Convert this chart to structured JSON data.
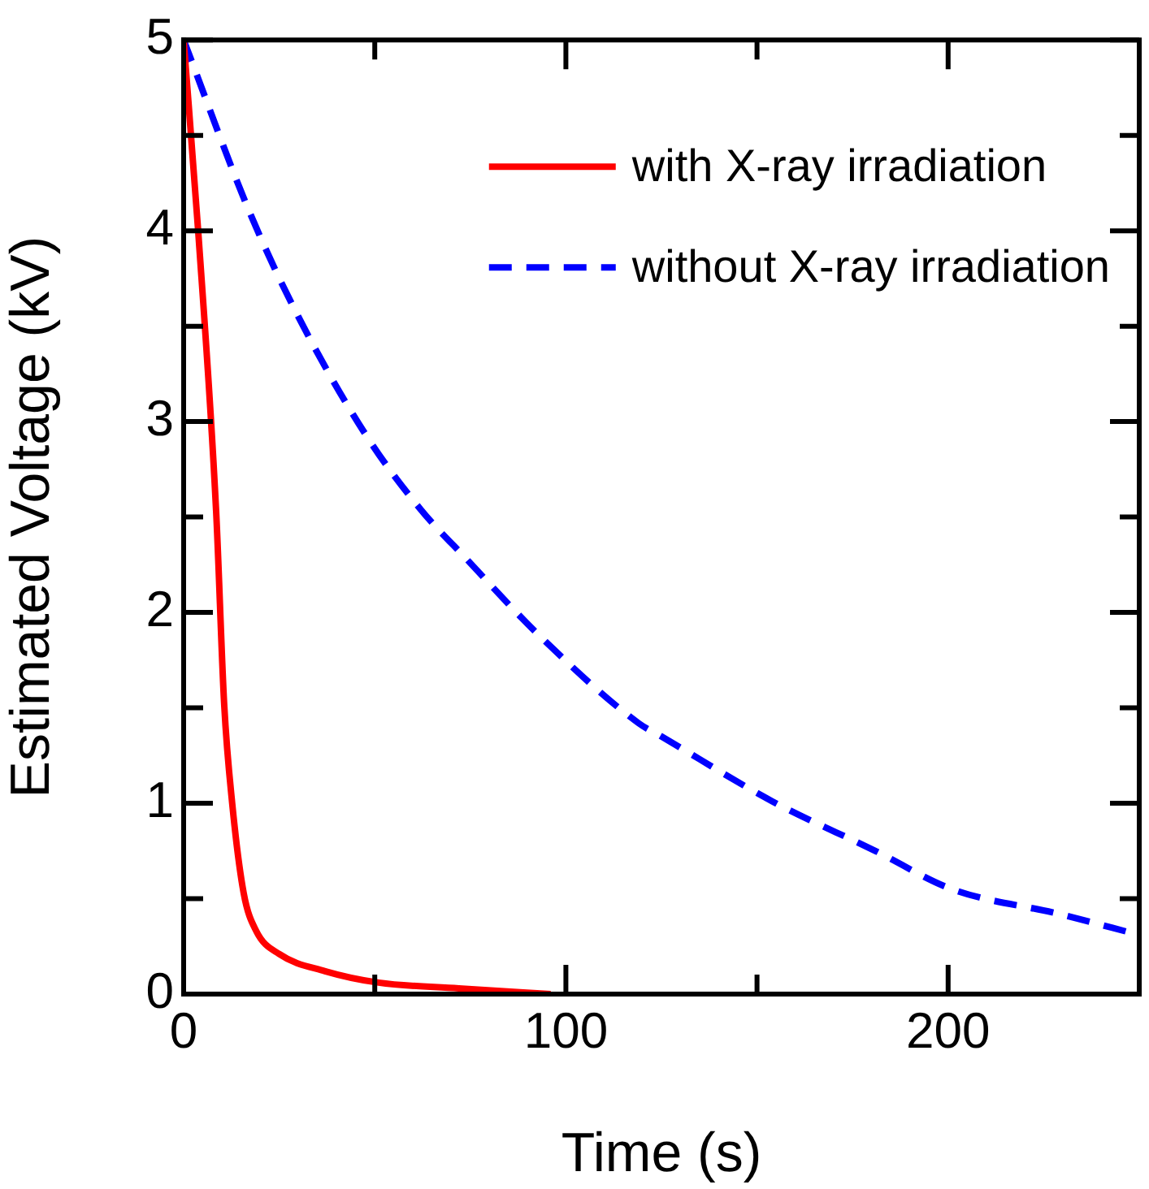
{
  "chart_data": {
    "type": "line",
    "xlabel": "Time (s)",
    "ylabel": "Estimated Voltage (kV)",
    "xlim": [
      0,
      250
    ],
    "ylim": [
      0,
      5
    ],
    "xticks": [
      0,
      {
        "value": 50,
        "label": null
      },
      100,
      {
        "value": 150,
        "label": null
      },
      200,
      {
        "value": 250,
        "label": null
      }
    ],
    "yticks": [
      0,
      {
        "value": 0.5,
        "label": null
      },
      1,
      {
        "value": 1.5,
        "label": null
      },
      2,
      {
        "value": 2.5,
        "label": null
      },
      3,
      {
        "value": 3.5,
        "label": null
      },
      4,
      {
        "value": 4.5,
        "label": null
      },
      5
    ],
    "grid": false,
    "legend": "top right",
    "marker": "none",
    "series": [
      {
        "name": "with X-ray irradiation",
        "color": "#ff0000",
        "line_style": "solid",
        "x": [
          0,
          3.8,
          8.5,
          10.6,
          12.7,
          15.7,
          19,
          25,
          37,
          51,
          72,
          96
        ],
        "values": [
          5,
          4,
          2.53,
          1.52,
          1,
          0.53,
          0.33,
          0.21,
          0.12,
          0.06,
          0.03,
          0
        ]
      },
      {
        "name": "without X-ray irradiation",
        "color": "#0000ff",
        "line_style": "dashed",
        "x": [
          0,
          17,
          30,
          48,
          62,
          74,
          93,
          119,
          125,
          154,
          181,
          201,
          229,
          250
        ],
        "values": [
          5,
          4.11,
          3.55,
          2.92,
          2.54,
          2.28,
          1.88,
          1.42,
          1.35,
          1.01,
          0.75,
          0.55,
          0.42,
          0.31
        ]
      }
    ]
  }
}
